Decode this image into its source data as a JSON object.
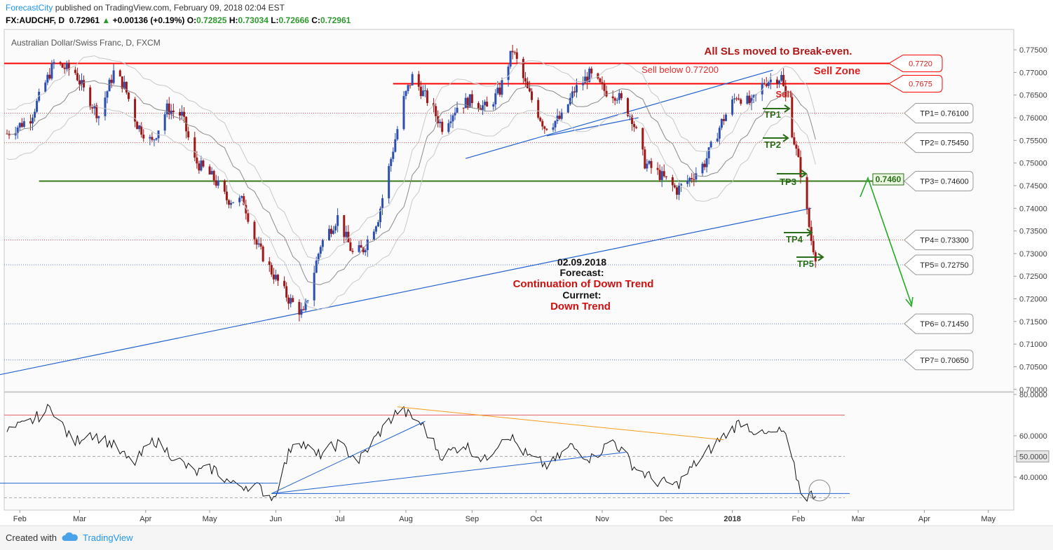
{
  "header": {
    "brand": "ForecastCity",
    "published": " published on TradingView.com, February 09, 2018 02:04 EST",
    "symbol": "FX:AUDCHF, D",
    "last": "0.72961",
    "up_arrow": "▲",
    "change": "+0.00136 (+0.19%)",
    "o_label": "O:",
    "o": "0.72825",
    "h_label": "H:",
    "h": "0.73034",
    "l_label": "L:",
    "l": "0.72666",
    "c_label": "C:",
    "c": "0.72961"
  },
  "footer": {
    "created_with": "Created with",
    "brand": "TradingView"
  },
  "colors": {
    "up_candle": "#2c4fb0",
    "down_candle": "#a01818",
    "sell_zone": "#ff0000",
    "tp_line": "#e05050",
    "support_line": "#3a7a1a",
    "trend_line": "#2060d0",
    "forecast_arrow": "#22aa22",
    "orange_trend": "#f59c1a"
  },
  "chart_data": [
    {
      "type": "candlestick",
      "title": "Australian Dollar/Swiss Franc, D, FXCM",
      "ylim": [
        0.6995,
        0.7795
      ],
      "y_ticks": [
        "0.77500",
        "0.77000",
        "0.76500",
        "0.76000",
        "0.75500",
        "0.75000",
        "0.74500",
        "0.74000",
        "0.73500",
        "0.73000",
        "0.72500",
        "0.72000",
        "0.71500",
        "0.71000",
        "0.70500",
        "0.70000"
      ],
      "x_ticks": [
        {
          "label": "Feb",
          "x": "2017-02-01"
        },
        {
          "label": "Mar",
          "x": "2017-03-01"
        },
        {
          "label": "Apr",
          "x": "2017-04-01"
        },
        {
          "label": "May",
          "x": "2017-05-01"
        },
        {
          "label": "Jun",
          "x": "2017-06-01"
        },
        {
          "label": "Jul",
          "x": "2017-07-01"
        },
        {
          "label": "Aug",
          "x": "2017-08-01"
        },
        {
          "label": "Sep",
          "x": "2017-09-01"
        },
        {
          "label": "Oct",
          "x": "2017-10-01"
        },
        {
          "label": "Nov",
          "x": "2017-11-01"
        },
        {
          "label": "Dec",
          "x": "2017-12-01"
        },
        {
          "label": "2018",
          "x": "2018-01-01"
        },
        {
          "label": "Feb",
          "x": "2018-02-01"
        },
        {
          "label": "Mar",
          "x": "2018-03-01"
        },
        {
          "label": "Apr",
          "x": "2018-04-01"
        },
        {
          "label": "May",
          "x": "2018-05-01"
        }
      ],
      "price_path": [
        [
          "2017-01-26",
          0.7565
        ],
        [
          "2017-02-06",
          0.76
        ],
        [
          "2017-02-17",
          0.772
        ],
        [
          "2017-02-27",
          0.77
        ],
        [
          "2017-03-03",
          0.766
        ],
        [
          "2017-03-10",
          0.7605
        ],
        [
          "2017-03-17",
          0.77
        ],
        [
          "2017-03-22",
          0.767
        ],
        [
          "2017-03-28",
          0.7585
        ],
        [
          "2017-04-04",
          0.7545
        ],
        [
          "2017-04-11",
          0.762
        ],
        [
          "2017-04-18",
          0.7605
        ],
        [
          "2017-04-24",
          0.7505
        ],
        [
          "2017-05-03",
          0.7465
        ],
        [
          "2017-05-09",
          0.742
        ],
        [
          "2017-05-17",
          0.7415
        ],
        [
          "2017-05-23",
          0.732
        ],
        [
          "2017-05-30",
          0.726
        ],
        [
          "2017-06-07",
          0.72
        ],
        [
          "2017-06-14",
          0.7165
        ],
        [
          "2017-06-22",
          0.732
        ],
        [
          "2017-06-30",
          0.738
        ],
        [
          "2017-07-07",
          0.73
        ],
        [
          "2017-07-12",
          0.731
        ],
        [
          "2017-07-19",
          0.738
        ],
        [
          "2017-07-25",
          0.751
        ],
        [
          "2017-07-31",
          0.764
        ],
        [
          "2017-08-04",
          0.769
        ],
        [
          "2017-08-11",
          0.764
        ],
        [
          "2017-08-18",
          0.758
        ],
        [
          "2017-08-25",
          0.7625
        ],
        [
          "2017-09-01",
          0.764
        ],
        [
          "2017-09-08",
          0.762
        ],
        [
          "2017-09-14",
          0.766
        ],
        [
          "2017-09-20",
          0.775
        ],
        [
          "2017-09-27",
          0.766
        ],
        [
          "2017-10-05",
          0.758
        ],
        [
          "2017-10-13",
          0.76
        ],
        [
          "2017-10-19",
          0.766
        ],
        [
          "2017-10-26",
          0.7695
        ],
        [
          "2017-11-02",
          0.766
        ],
        [
          "2017-11-08",
          0.765
        ],
        [
          "2017-11-15",
          0.76
        ],
        [
          "2017-11-21",
          0.75
        ],
        [
          "2017-11-29",
          0.747
        ],
        [
          "2017-12-06",
          0.744
        ],
        [
          "2017-12-12",
          0.7465
        ],
        [
          "2017-12-19",
          0.75
        ],
        [
          "2017-12-27",
          0.759
        ],
        [
          "2018-01-03",
          0.765
        ],
        [
          "2018-01-10",
          0.763
        ],
        [
          "2018-01-16",
          0.768
        ],
        [
          "2018-01-24",
          0.769
        ],
        [
          "2018-01-29",
          0.757
        ],
        [
          "2018-02-02",
          0.748
        ],
        [
          "2018-02-05",
          0.739
        ],
        [
          "2018-02-07",
          0.733
        ],
        [
          "2018-02-09",
          0.7296
        ]
      ],
      "levels": [
        {
          "label": "0.7720",
          "value": 0.772,
          "kind": "sell-zone-top"
        },
        {
          "label": "0.7675",
          "value": 0.7675,
          "kind": "sell-zone-bottom"
        },
        {
          "label": "TP1= 0.76100",
          "value": 0.761,
          "kind": "tp"
        },
        {
          "label": "TP2= 0.75450",
          "value": 0.7545,
          "kind": "tp"
        },
        {
          "label": "TP3= 0.74600",
          "value": 0.746,
          "kind": "support"
        },
        {
          "label": "TP4= 0.73300",
          "value": 0.733,
          "kind": "tp"
        },
        {
          "label": "TP5= 0.72750",
          "value": 0.7275,
          "kind": "tp-blue"
        },
        {
          "label": "TP6= 0.71450",
          "value": 0.7145,
          "kind": "tp-blue"
        },
        {
          "label": "TP7= 0.70650",
          "value": 0.7065,
          "kind": "tp-blue"
        }
      ],
      "trendlines": [
        {
          "from": [
            "2017-01-20",
            0.703
          ],
          "to": [
            "2018-02-07",
            0.74
          ]
        },
        {
          "from": [
            "2017-08-29",
            0.751
          ],
          "to": [
            "2018-01-20",
            0.7705
          ]
        },
        {
          "from": [
            "2017-10-06",
            0.756
          ],
          "to": [
            "2017-11-18",
            0.76
          ]
        }
      ],
      "annotations": {
        "sl_note": "All SLs moved to Break-even.",
        "sell_below": "Sell below 0.77200",
        "sell_zone": "Sell Zone",
        "sell_mark": "Sell",
        "support_value": "0.7460",
        "tp_marks": [
          "TP1",
          "TP2",
          "TP3",
          "TP4",
          "TP5"
        ],
        "date": "02.09.2018",
        "forecast_label": "Forecast:",
        "forecast_value": "Continuation of Down Trend",
        "current_label": "Currnet:",
        "current_value": "Down Trend"
      }
    },
    {
      "type": "line",
      "ylim": [
        24,
        81
      ],
      "y_ticks": [
        "80.0000",
        "60.0000",
        "50.0000",
        "40.0000"
      ],
      "levels": [
        70,
        50,
        30
      ],
      "series_path": [
        [
          "2017-01-26",
          62
        ],
        [
          "2017-02-05",
          66
        ],
        [
          "2017-02-16",
          74
        ],
        [
          "2017-02-26",
          56
        ],
        [
          "2017-03-05",
          62
        ],
        [
          "2017-03-16",
          56
        ],
        [
          "2017-03-26",
          46
        ],
        [
          "2017-04-05",
          58
        ],
        [
          "2017-04-14",
          50
        ],
        [
          "2017-04-24",
          42
        ],
        [
          "2017-05-03",
          44
        ],
        [
          "2017-05-12",
          36
        ],
        [
          "2017-05-22",
          36
        ],
        [
          "2017-05-31",
          30
        ],
        [
          "2017-06-10",
          60
        ],
        [
          "2017-06-20",
          50
        ],
        [
          "2017-06-30",
          56
        ],
        [
          "2017-07-10",
          48
        ],
        [
          "2017-07-20",
          62
        ],
        [
          "2017-07-29",
          73
        ],
        [
          "2017-08-08",
          66
        ],
        [
          "2017-08-18",
          50
        ],
        [
          "2017-08-28",
          56
        ],
        [
          "2017-09-07",
          48
        ],
        [
          "2017-09-17",
          62
        ],
        [
          "2017-09-27",
          50
        ],
        [
          "2017-10-07",
          45
        ],
        [
          "2017-10-17",
          55
        ],
        [
          "2017-10-27",
          49
        ],
        [
          "2017-11-06",
          58
        ],
        [
          "2017-11-16",
          45
        ],
        [
          "2017-11-26",
          38
        ],
        [
          "2017-12-06",
          36
        ],
        [
          "2017-12-16",
          48
        ],
        [
          "2017-12-26",
          58
        ],
        [
          "2018-01-05",
          67
        ],
        [
          "2018-01-15",
          60
        ],
        [
          "2018-01-25",
          62
        ],
        [
          "2018-02-03",
          30
        ],
        [
          "2018-02-09",
          32
        ]
      ],
      "trendlines": [
        {
          "from": [
            "2017-01-20",
            37
          ],
          "to": [
            "2017-06-02",
            37
          ],
          "color": "#2060d0"
        },
        {
          "from": [
            "2017-05-30",
            32
          ],
          "to": [
            "2017-08-10",
            67
          ],
          "color": "#2060d0"
        },
        {
          "from": [
            "2017-05-30",
            32
          ],
          "to": [
            "2017-11-12",
            52
          ],
          "color": "#2060d0"
        },
        {
          "from": [
            "2017-05-30",
            32
          ],
          "to": [
            "2018-02-25",
            32
          ],
          "color": "#2060d0"
        },
        {
          "from": [
            "2017-07-28",
            74
          ],
          "to": [
            "2017-12-28",
            58
          ],
          "color": "#f59c1a"
        }
      ]
    }
  ]
}
